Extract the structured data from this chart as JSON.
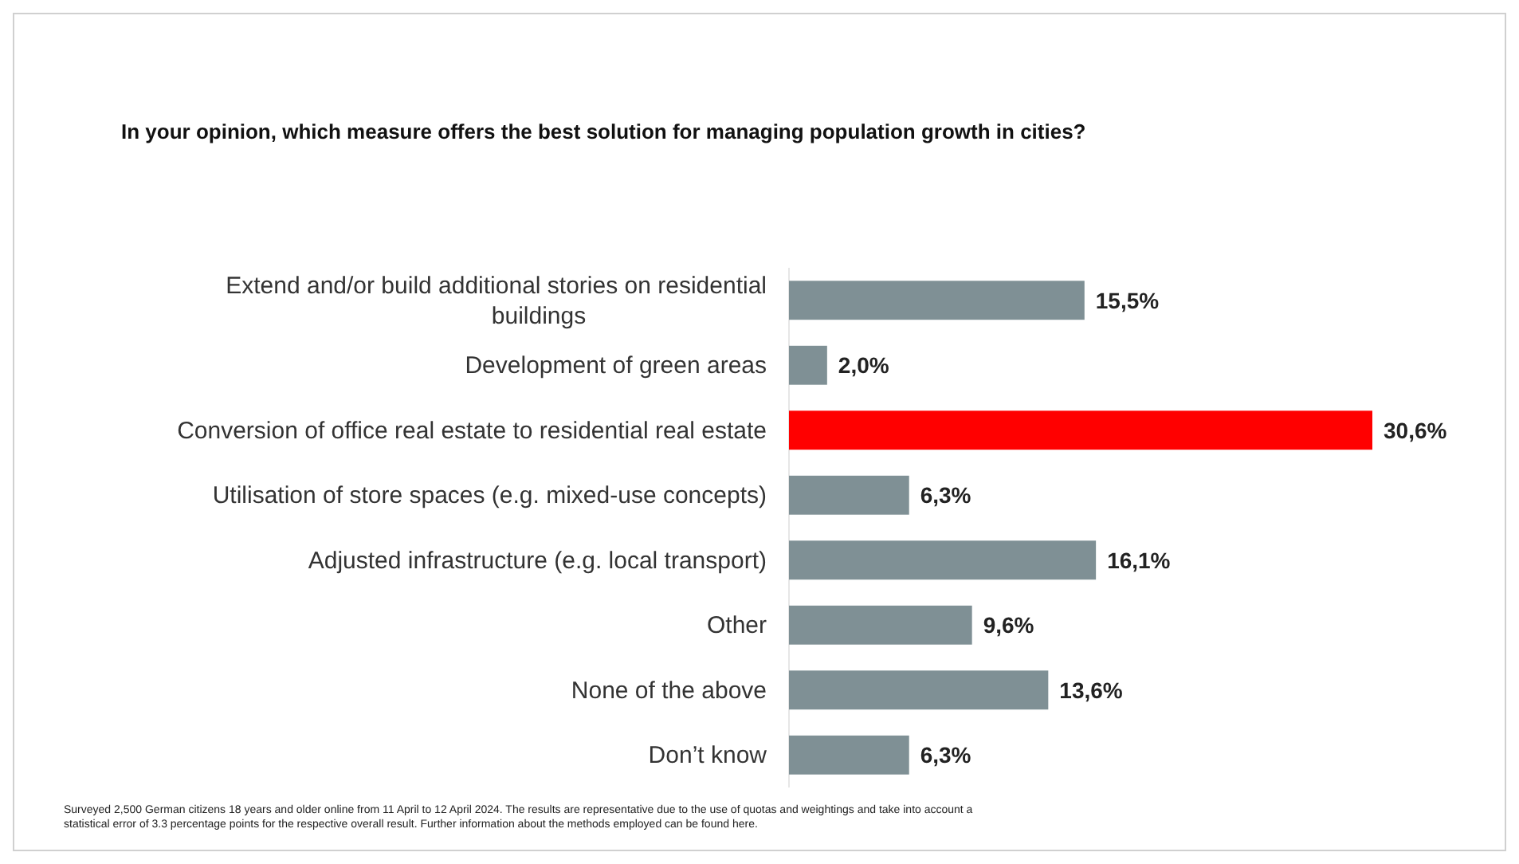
{
  "chart_data": {
    "type": "bar",
    "orientation": "horizontal",
    "title": "In your opinion, which measure offers the best solution for managing population growth in cities?",
    "categories": [
      "Extend and/or build additional stories on residential buildings",
      "Development of green areas",
      "Conversion of office real estate to residential real estate",
      "Utilisation of store spaces (e.g. mixed-use concepts)",
      "Adjusted infrastructure (e.g. local transport)",
      "Other",
      "None of the above",
      "Don’t know"
    ],
    "values": [
      15.5,
      2.0,
      30.6,
      6.3,
      16.1,
      9.6,
      13.6,
      6.3
    ],
    "value_labels": [
      "15,5%",
      "2,0%",
      "30,6%",
      "6,3%",
      "16,1%",
      "9,6%",
      "13,6%",
      "6,3%"
    ],
    "colors": [
      "#7f9095",
      "#7f9095",
      "#ff0000",
      "#7f9095",
      "#7f9095",
      "#7f9095",
      "#7f9095",
      "#7f9095"
    ],
    "annotations": [
      "Surveyed 2,500 German citizens 18 years and older online from 11 April to 12 April 2024. The results are representative due to the use of quotas and weightings and take into account a statistical error of 3.3 percentage points for the respective overall result. Further information about the methods employed can be found here."
    ]
  }
}
